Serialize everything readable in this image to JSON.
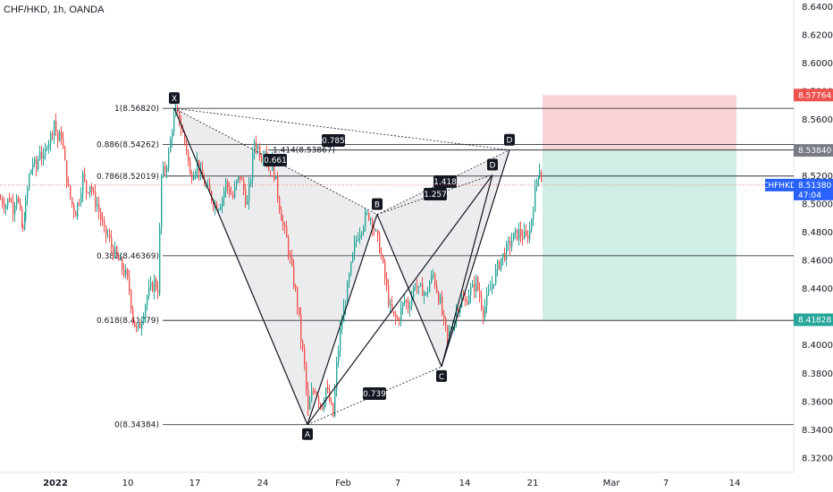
{
  "header": {
    "title": "CHF/HKD, 1h, OANDA"
  },
  "colors": {
    "up": "#26a69a",
    "down": "#ef5350",
    "pattern_fill": "#9598a1",
    "stop_zone": "#f7c5c8",
    "target_zone": "#c8ebe2",
    "stop_tag": "#ef5350",
    "entry_tag": "#787b86",
    "price_tag": "#2962ff",
    "target_tag": "#26a69a"
  },
  "chart_data": {
    "type": "candlestick",
    "symbol": "CHFHKD",
    "y_ticks": [
      "8.64000",
      "8.62000",
      "8.60000",
      "8.58000",
      "8.56000",
      "8.54000",
      "8.52000",
      "8.50000",
      "8.48000",
      "8.46000",
      "8.44000",
      "8.42000",
      "8.40000",
      "8.38000",
      "8.36000",
      "8.34000",
      "8.32000"
    ],
    "x_ticks": [
      {
        "label": "2022",
        "bold": true
      },
      {
        "label": "10",
        "bold": false
      },
      {
        "label": "17",
        "bold": false
      },
      {
        "label": "24",
        "bold": false
      },
      {
        "label": "Feb",
        "bold": false
      },
      {
        "label": "7",
        "bold": false
      },
      {
        "label": "14",
        "bold": false
      },
      {
        "label": "21",
        "bold": false
      },
      {
        "label": "Mar",
        "bold": false
      },
      {
        "label": "7",
        "bold": false
      },
      {
        "label": "14",
        "bold": false
      }
    ],
    "path": [
      [
        0,
        8.504
      ],
      [
        6,
        8.5
      ],
      [
        10,
        8.505
      ],
      [
        14,
        8.498
      ],
      [
        18,
        8.508
      ],
      [
        22,
        8.492
      ],
      [
        25,
        8.48
      ],
      [
        28,
        8.5
      ],
      [
        32,
        8.52
      ],
      [
        36,
        8.53
      ],
      [
        40,
        8.525
      ],
      [
        44,
        8.54
      ],
      [
        48,
        8.53
      ],
      [
        52,
        8.545
      ],
      [
        56,
        8.548
      ],
      [
        60,
        8.56
      ],
      [
        64,
        8.545
      ],
      [
        68,
        8.55
      ],
      [
        72,
        8.528
      ],
      [
        76,
        8.51
      ],
      [
        80,
        8.5
      ],
      [
        84,
        8.495
      ],
      [
        88,
        8.505
      ],
      [
        92,
        8.52
      ],
      [
        96,
        8.51
      ],
      [
        100,
        8.515
      ],
      [
        104,
        8.505
      ],
      [
        108,
        8.5
      ],
      [
        112,
        8.49
      ],
      [
        116,
        8.48
      ],
      [
        120,
        8.478
      ],
      [
        124,
        8.47
      ],
      [
        128,
        8.465
      ],
      [
        132,
        8.46
      ],
      [
        136,
        8.455
      ],
      [
        140,
        8.45
      ],
      [
        144,
        8.44
      ],
      [
        148,
        8.42
      ],
      [
        152,
        8.41
      ],
      [
        156,
        8.415
      ],
      [
        160,
        8.425
      ],
      [
        164,
        8.435
      ],
      [
        168,
        8.44
      ],
      [
        172,
        8.445
      ],
      [
        176,
        8.44
      ],
      [
        180,
        8.52
      ],
      [
        184,
        8.525
      ],
      [
        188,
        8.535
      ],
      [
        192,
        8.555
      ],
      [
        196,
        8.565
      ],
      [
        200,
        8.56
      ],
      [
        204,
        8.55
      ],
      [
        208,
        8.54
      ],
      [
        212,
        8.52
      ],
      [
        216,
        8.525
      ],
      [
        220,
        8.53
      ],
      [
        224,
        8.52
      ],
      [
        228,
        8.515
      ],
      [
        232,
        8.51
      ],
      [
        236,
        8.505
      ],
      [
        240,
        8.5
      ],
      [
        244,
        8.5
      ],
      [
        248,
        8.505
      ],
      [
        252,
        8.515
      ],
      [
        256,
        8.51
      ],
      [
        260,
        8.505
      ],
      [
        264,
        8.515
      ],
      [
        268,
        8.52
      ],
      [
        272,
        8.51
      ],
      [
        276,
        8.5
      ],
      [
        280,
        8.52
      ],
      [
        284,
        8.545
      ],
      [
        288,
        8.54
      ],
      [
        292,
        8.535
      ],
      [
        296,
        8.54
      ],
      [
        300,
        8.525
      ],
      [
        304,
        8.53
      ],
      [
        308,
        8.515
      ],
      [
        312,
        8.5
      ],
      [
        316,
        8.485
      ],
      [
        320,
        8.475
      ],
      [
        324,
        8.46
      ],
      [
        328,
        8.445
      ],
      [
        332,
        8.43
      ],
      [
        336,
        8.405
      ],
      [
        340,
        8.385
      ],
      [
        344,
        8.352
      ],
      [
        348,
        8.365
      ],
      [
        352,
        8.37
      ],
      [
        356,
        8.362
      ],
      [
        360,
        8.358
      ],
      [
        364,
        8.37
      ],
      [
        368,
        8.36
      ],
      [
        372,
        8.35
      ],
      [
        376,
        8.385
      ],
      [
        380,
        8.41
      ],
      [
        384,
        8.425
      ],
      [
        388,
        8.44
      ],
      [
        392,
        8.455
      ],
      [
        396,
        8.47
      ],
      [
        400,
        8.48
      ],
      [
        404,
        8.485
      ],
      [
        408,
        8.49
      ],
      [
        412,
        8.493
      ],
      [
        416,
        8.488
      ],
      [
        420,
        8.478
      ],
      [
        424,
        8.47
      ],
      [
        428,
        8.455
      ],
      [
        432,
        8.44
      ],
      [
        436,
        8.425
      ],
      [
        440,
        8.42
      ],
      [
        444,
        8.418
      ],
      [
        448,
        8.425
      ],
      [
        452,
        8.432
      ],
      [
        456,
        8.428
      ],
      [
        460,
        8.435
      ],
      [
        464,
        8.445
      ],
      [
        468,
        8.438
      ],
      [
        472,
        8.44
      ],
      [
        476,
        8.435
      ],
      [
        480,
        8.445
      ],
      [
        484,
        8.45
      ],
      [
        488,
        8.44
      ],
      [
        492,
        8.43
      ],
      [
        496,
        8.415
      ],
      [
        500,
        8.405
      ],
      [
        504,
        8.412
      ],
      [
        508,
        8.42
      ],
      [
        512,
        8.428
      ],
      [
        516,
        8.432
      ],
      [
        520,
        8.43
      ],
      [
        524,
        8.438
      ],
      [
        528,
        8.44
      ],
      [
        532,
        8.445
      ],
      [
        536,
        8.435
      ],
      [
        540,
        8.425
      ],
      [
        544,
        8.432
      ],
      [
        548,
        8.44
      ],
      [
        552,
        8.448
      ],
      [
        556,
        8.455
      ],
      [
        560,
        8.462
      ],
      [
        564,
        8.465
      ],
      [
        568,
        8.47
      ],
      [
        572,
        8.475
      ],
      [
        576,
        8.478
      ],
      [
        580,
        8.48
      ],
      [
        584,
        8.478
      ],
      [
        588,
        8.476
      ],
      [
        592,
        8.482
      ],
      [
        596,
        8.5
      ],
      [
        600,
        8.518
      ],
      [
        603,
        8.526
      ],
      [
        606,
        8.514
      ]
    ],
    "price_high": 8.6427,
    "price_low": 8.308,
    "harmonic_points": [
      {
        "label": "X",
        "price": 8.5682
      },
      {
        "label": "A",
        "price": 8.34384
      },
      {
        "label": "B",
        "price": 8.493
      },
      {
        "label": "C",
        "price": 8.385
      },
      {
        "label": "D",
        "price": 8.53867
      },
      {
        "label": "D",
        "price": 8.521
      }
    ],
    "fib_levels": [
      {
        "label": "1(8.56820)",
        "price": 8.5682
      },
      {
        "label": "0.886(8.54262)",
        "price": 8.54262
      },
      {
        "label": "0.786(8.52019)",
        "price": 8.52019
      },
      {
        "label": "0.382(8.46369)",
        "price": 8.46369
      },
      {
        "label": "0.618(8.41779)",
        "price": 8.41779
      },
      {
        "label": "0(8.34384)",
        "price": 8.34384
      }
    ],
    "ext_label": "1.414(8.53867)",
    "ratios": [
      "0.785",
      "0.661",
      "1.257",
      "1.418",
      "0.739"
    ],
    "position": {
      "stop": 8.57764,
      "entry": 8.5384,
      "target": 8.41828
    },
    "price_tags": [
      {
        "text": "8.57764",
        "role": "stop",
        "price": 8.57764
      },
      {
        "text": "8.53840",
        "role": "entry",
        "price": 8.5384
      },
      {
        "text": "8.51380",
        "role": "price",
        "price": 8.5138
      },
      {
        "text": "8.41828",
        "role": "target",
        "price": 8.41828
      }
    ],
    "last_price_label": "CHFHKD",
    "countdown": "47:04"
  }
}
